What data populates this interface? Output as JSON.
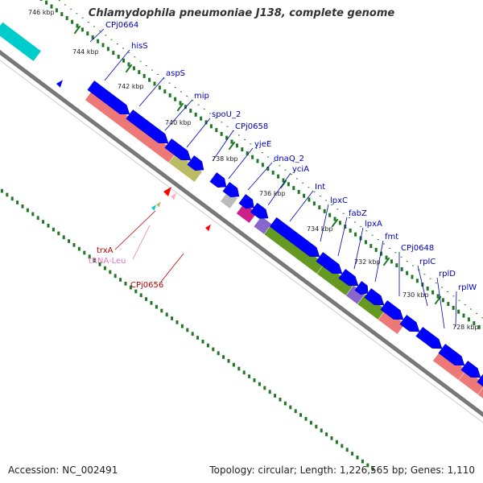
{
  "title": "Chlamydophila pneumoniae J138, complete genome",
  "footer": {
    "accession": "Accession: NC_002491",
    "summary": "Topology: circular; Length: 1,226,565 bp; Genes: 1,110"
  },
  "colors": {
    "cds": "#0000ff",
    "genes": [
      "#ee7777",
      "#bbbb66",
      "#cc2288",
      "#8866cc",
      "#669922",
      "#00cccc",
      "#ff0000",
      "#ffaacc"
    ],
    "tick": "#227722",
    "backbone": "#777777",
    "upper_label": "#0000bb",
    "lower_label": "#bb0000",
    "trna_label": "#dd77bb"
  },
  "scale_labels": [
    "746 kbp",
    "744 kbp",
    "742 kbp",
    "740 kbp",
    "738 kbp",
    "736 kbp",
    "734 kbp",
    "732 kbp",
    "730 kbp",
    "728 kbp"
  ],
  "gene_labels_upper": [
    "CPj0664",
    "hisS",
    "aspS",
    "mip",
    "spoU_2",
    "CPj0658",
    "yjeE",
    "dnaQ_2",
    "yciA",
    "Int",
    "lpxC",
    "fabZ",
    "lpxA",
    "fmt",
    "CPj0648",
    "rplC",
    "rplD",
    "rplW"
  ],
  "gene_labels_lower": [
    "trxA",
    "tRNA-Leu",
    "CPj0656"
  ]
}
